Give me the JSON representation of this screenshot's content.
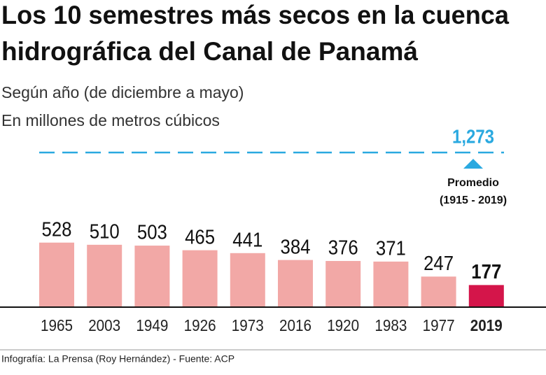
{
  "chart_data": {
    "type": "bar",
    "title": [
      "Los 10 semestres más secos en la cuenca",
      "hidrográfica del Canal de Panamá"
    ],
    "subtitle": [
      "Según año (de diciembre a mayo)",
      "En millones de metros cúbicos"
    ],
    "categories": [
      "1965",
      "2003",
      "1949",
      "1926",
      "1973",
      "2016",
      "1920",
      "1983",
      "1977",
      "2019"
    ],
    "values": [
      528,
      510,
      503,
      465,
      441,
      384,
      376,
      371,
      247,
      177
    ],
    "colors": [
      "#f2a8a6",
      "#f2a8a6",
      "#f2a8a6",
      "#f2a8a6",
      "#f2a8a6",
      "#f2a8a6",
      "#f2a8a6",
      "#f2a8a6",
      "#f2a8a6",
      "#d4154a"
    ],
    "average": {
      "value": 1273,
      "label": "1,273",
      "color": "#2aa9e0",
      "name": "Promedio",
      "period": "(1915 - 2019)"
    },
    "source": "Infografía: La Prensa (Roy Hernández) - Fuente: ACP"
  }
}
